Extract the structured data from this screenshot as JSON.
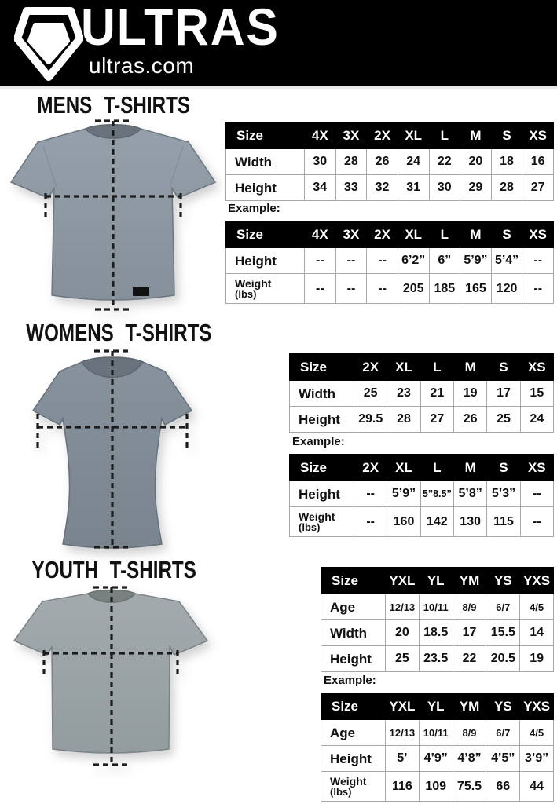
{
  "header": {
    "brand": "ULTRAS",
    "site": "ultras.com",
    "bar_color": "#000000"
  },
  "colors": {
    "table_header_bg": "#000000",
    "table_header_text": "#ffffff",
    "mens_shirt": "#8b95a0",
    "womens_shirt": "#7e8993",
    "youth_shirt": "#99a1a5",
    "measurement_line": "#1d1d1d"
  },
  "sections": [
    {
      "heading": "MENS T-SHIRTS",
      "example_label": "Example:",
      "size_table": {
        "first_col_width": 100,
        "header": [
          "Size",
          "4X",
          "3X",
          "2X",
          "XL",
          "L",
          "M",
          "S",
          "XS"
        ],
        "rows": [
          {
            "label": "Width",
            "cells": [
              "30",
              "28",
              "26",
              "24",
              "22",
              "20",
              "18",
              "16"
            ]
          },
          {
            "label": "Height",
            "cells": [
              "34",
              "33",
              "32",
              "31",
              "30",
              "29",
              "28",
              "27"
            ]
          }
        ]
      },
      "example_table": {
        "first_col_width": 100,
        "header": [
          "Size",
          "4X",
          "3X",
          "2X",
          "XL",
          "L",
          "M",
          "S",
          "XS"
        ],
        "rows": [
          {
            "label": "Height",
            "cells": [
              "--",
              "--",
              "--",
              "6’2”",
              "6”",
              "5’9”",
              "5’4”",
              "--"
            ]
          },
          {
            "label": "Weight",
            "label2": "(lbs)",
            "cells": [
              "--",
              "--",
              "--",
              "205",
              "185",
              "165",
              "120",
              "--"
            ]
          }
        ]
      }
    },
    {
      "heading": "WOMENS T-SHIRTS",
      "example_label": "Example:",
      "size_table": {
        "first_col_width": 82,
        "header": [
          "Size",
          "2X",
          "XL",
          "L",
          "M",
          "S",
          "XS"
        ],
        "rows": [
          {
            "label": "Width",
            "cells": [
              "25",
              "23",
              "21",
              "19",
              "17",
              "15"
            ]
          },
          {
            "label": "Height",
            "cells": [
              "29.5",
              "28",
              "27",
              "26",
              "25",
              "24"
            ]
          }
        ]
      },
      "example_table": {
        "first_col_width": 82,
        "header": [
          "Size",
          "2X",
          "XL",
          "L",
          "M",
          "S",
          "XS"
        ],
        "rows": [
          {
            "label": "Height",
            "cells": [
              "--",
              "5’9”",
              "5”8.5”",
              "5’8”",
              "5’3”",
              "--"
            ]
          },
          {
            "label": "Weight",
            "label2": "(lbs)",
            "cells": [
              "--",
              "160",
              "142",
              "130",
              "115",
              "--"
            ]
          }
        ]
      }
    },
    {
      "heading": "YOUTH T-SHIRTS",
      "example_label": "Example:",
      "size_table": {
        "first_col_width": 82,
        "header": [
          "Size",
          "YXL",
          "YL",
          "YM",
          "YS",
          "YXS"
        ],
        "rows": [
          {
            "label": "Age",
            "small": true,
            "cells": [
              "12/13",
              "10/11",
              "8/9",
              "6/7",
              "4/5"
            ]
          },
          {
            "label": "Width",
            "cells": [
              "20",
              "18.5",
              "17",
              "15.5",
              "14"
            ]
          },
          {
            "label": "Height",
            "cells": [
              "25",
              "23.5",
              "22",
              "20.5",
              "19"
            ]
          }
        ]
      },
      "example_table": {
        "first_col_width": 82,
        "header": [
          "Size",
          "YXL",
          "YL",
          "YM",
          "YS",
          "YXS"
        ],
        "rows": [
          {
            "label": "Age",
            "small": true,
            "cells": [
              "12/13",
              "10/11",
              "8/9",
              "6/7",
              "4/5"
            ]
          },
          {
            "label": "Height",
            "cells": [
              "5’",
              "4’9”",
              "4’8”",
              "4’5”",
              "3’9”"
            ]
          },
          {
            "label": "Weight",
            "label2": "(lbs)",
            "cells": [
              "116",
              "109",
              "75.5",
              "66",
              "44"
            ]
          }
        ]
      }
    }
  ]
}
